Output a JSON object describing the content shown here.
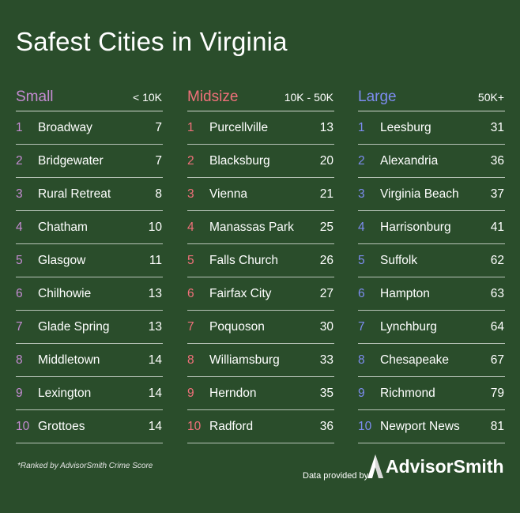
{
  "title": "Safest Cities in Virginia",
  "columns": [
    {
      "name": "Small",
      "range": "< 10K",
      "color": "#c58bd3",
      "rows": [
        {
          "rank": "1",
          "city": "Broadway",
          "score": "7"
        },
        {
          "rank": "2",
          "city": "Bridgewater",
          "score": "7"
        },
        {
          "rank": "3",
          "city": "Rural Retreat",
          "score": "8"
        },
        {
          "rank": "4",
          "city": "Chatham",
          "score": "10"
        },
        {
          "rank": "5",
          "city": "Glasgow",
          "score": "11"
        },
        {
          "rank": "6",
          "city": "Chilhowie",
          "score": "13"
        },
        {
          "rank": "7",
          "city": "Glade Spring",
          "score": "13"
        },
        {
          "rank": "8",
          "city": "Middletown",
          "score": "14"
        },
        {
          "rank": "9",
          "city": "Lexington",
          "score": "14"
        },
        {
          "rank": "10",
          "city": "Grottoes",
          "score": "14"
        }
      ]
    },
    {
      "name": "Midsize",
      "range": "10K - 50K",
      "color": "#f0707a",
      "rows": [
        {
          "rank": "1",
          "city": "Purcellville",
          "score": "13"
        },
        {
          "rank": "2",
          "city": "Blacksburg",
          "score": "20"
        },
        {
          "rank": "3",
          "city": "Vienna",
          "score": "21"
        },
        {
          "rank": "4",
          "city": "Manassas Park",
          "score": "25"
        },
        {
          "rank": "5",
          "city": "Falls Church",
          "score": "26"
        },
        {
          "rank": "6",
          "city": "Fairfax City",
          "score": "27"
        },
        {
          "rank": "7",
          "city": "Poquoson",
          "score": "30"
        },
        {
          "rank": "8",
          "city": "Williamsburg",
          "score": "33"
        },
        {
          "rank": "9",
          "city": "Herndon",
          "score": "35"
        },
        {
          "rank": "10",
          "city": "Radford",
          "score": "36"
        }
      ]
    },
    {
      "name": "Large",
      "range": "50K+",
      "color": "#7d8cf0",
      "rows": [
        {
          "rank": "1",
          "city": "Leesburg",
          "score": "31"
        },
        {
          "rank": "2",
          "city": "Alexandria",
          "score": "36"
        },
        {
          "rank": "3",
          "city": "Virginia Beach",
          "score": "37"
        },
        {
          "rank": "4",
          "city": "Harrisonburg",
          "score": "41"
        },
        {
          "rank": "5",
          "city": "Suffolk",
          "score": "62"
        },
        {
          "rank": "6",
          "city": "Hampton",
          "score": "63"
        },
        {
          "rank": "7",
          "city": "Lynchburg",
          "score": "64"
        },
        {
          "rank": "8",
          "city": "Chesapeake",
          "score": "67"
        },
        {
          "rank": "9",
          "city": "Richmond",
          "score": "79"
        },
        {
          "rank": "10",
          "city": "Newport News",
          "score": "81"
        }
      ]
    }
  ],
  "footnote": "*Ranked by AdvisorSmith Crime Score",
  "provided_by": "Data provided by",
  "logo_text": "AdvisorSmith",
  "logo_icon": "advisorsmith-logo-icon"
}
